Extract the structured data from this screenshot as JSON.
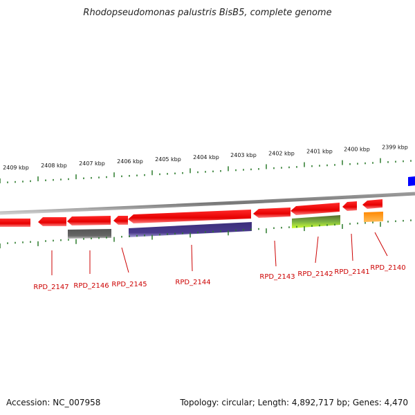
{
  "title": "Rhodopseudomonas palustris BisB5, complete genome",
  "footer": {
    "accession": "Accession: NC_007958",
    "topology": "Topology: circular; Length: 4,892,717 bp; Genes: 4,470"
  },
  "colors": {
    "forward_gene": "#ff0000",
    "rna_gene": "#666666",
    "purple_gene": "#4a3a8c",
    "green_gene": "#9acd32",
    "orange_gene": "#ff9900",
    "blue_gene": "#0000ff",
    "ticks": "#2a7a2a",
    "backbone": "#888888",
    "labels": "#cc0000"
  },
  "kbp_ticks": [
    "2409 kbp",
    "2408 kbp",
    "2407 kbp",
    "2406 kbp",
    "2405 kbp",
    "2404 kbp",
    "2403 kbp",
    "2402 kbp",
    "2401 kbp",
    "2400 kbp",
    "2399 kbp"
  ],
  "gene_labels": [
    "RPD_2147",
    "RPD_2146",
    "RPD_2145",
    "RPD_2144",
    "RPD_2143",
    "RPD_2142",
    "RPD_2141",
    "RPD_2140"
  ]
}
